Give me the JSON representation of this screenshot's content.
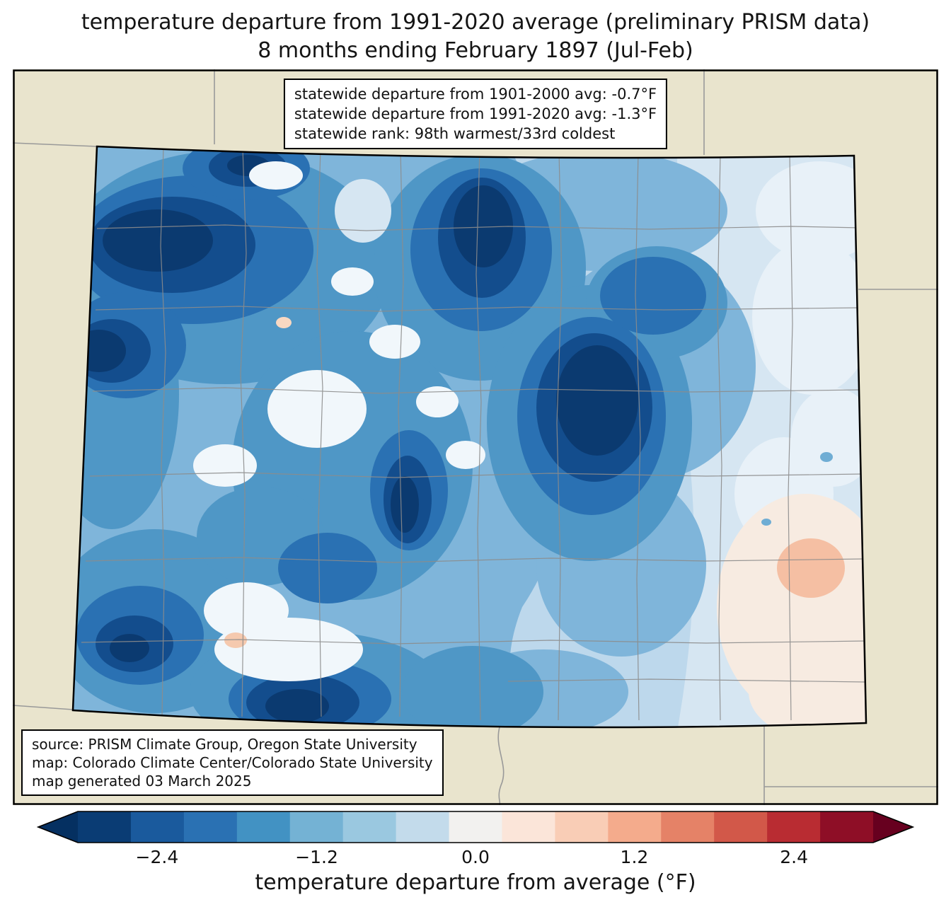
{
  "title": {
    "line1": "temperature departure from 1991-2020 average (preliminary PRISM data)",
    "line2": "8 months ending February 1897 (Jul-Feb)"
  },
  "stats_box": {
    "lines": [
      "statewide departure from 1901-2000 avg: -0.7°F",
      "statewide departure from 1991-2020 avg: -1.3°F",
      "statewide rank: 98th warmest/33rd coldest"
    ]
  },
  "source_box": {
    "lines": [
      "source: PRISM Climate Group, Oregon State University",
      "map: Colorado Climate Center/Colorado State University",
      "map generated 03 March 2025"
    ]
  },
  "colorbar": {
    "label": "temperature departure from average (°F)",
    "ticks": [
      {
        "label": "−2.4",
        "pct": 13.7
      },
      {
        "label": "−1.2",
        "pct": 31.9
      },
      {
        "label": "0.0",
        "pct": 50.0
      },
      {
        "label": "1.2",
        "pct": 68.1
      },
      {
        "label": "2.4",
        "pct": 86.3
      }
    ],
    "segments": [
      "#0a3c74",
      "#1a5a9d",
      "#2a71b3",
      "#4292c3",
      "#74b2d4",
      "#9ac8e0",
      "#c3dbeb",
      "#f2f1ef",
      "#fbe5d9",
      "#f9cdb6",
      "#f4ab8c",
      "#e58267",
      "#d25849",
      "#b92c32",
      "#8e0e26"
    ],
    "left_arrow": "#053061",
    "right_arrow": "#67001f"
  },
  "map_colors": {
    "background_land": "#e9e4cd",
    "state_border": "#000000",
    "county_line": "#8c8c8c",
    "coldest": "#0b3a70",
    "warm_anomaly": "#f5bfa3"
  }
}
